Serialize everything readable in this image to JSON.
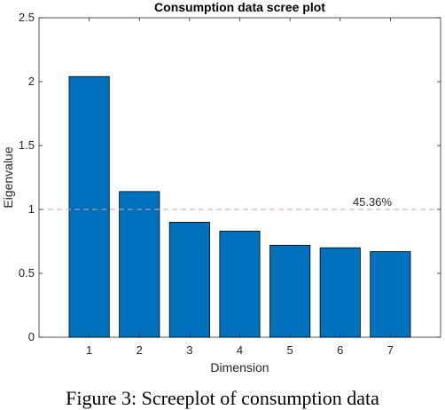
{
  "chart_data": {
    "type": "bar",
    "title": "Consumption data scree plot",
    "xlabel": "Dimension",
    "ylabel": "Eigenvalue",
    "categories": [
      "1",
      "2",
      "3",
      "4",
      "5",
      "6",
      "7"
    ],
    "values": [
      2.04,
      1.14,
      0.9,
      0.83,
      0.72,
      0.7,
      0.67
    ],
    "ylim": [
      0,
      2.5
    ],
    "yticks": [
      "0",
      "0.5",
      "1",
      "1.5",
      "2",
      "2.5"
    ],
    "reference_line": {
      "value": 1.0,
      "style": "dashed",
      "color": "#e0a0a0"
    },
    "annotations": [
      {
        "text": "45.36%"
      }
    ],
    "bar_color": "#0072bd",
    "grid": false,
    "legend": "none"
  },
  "caption": "Figure 3: Screeplot of consumption data"
}
